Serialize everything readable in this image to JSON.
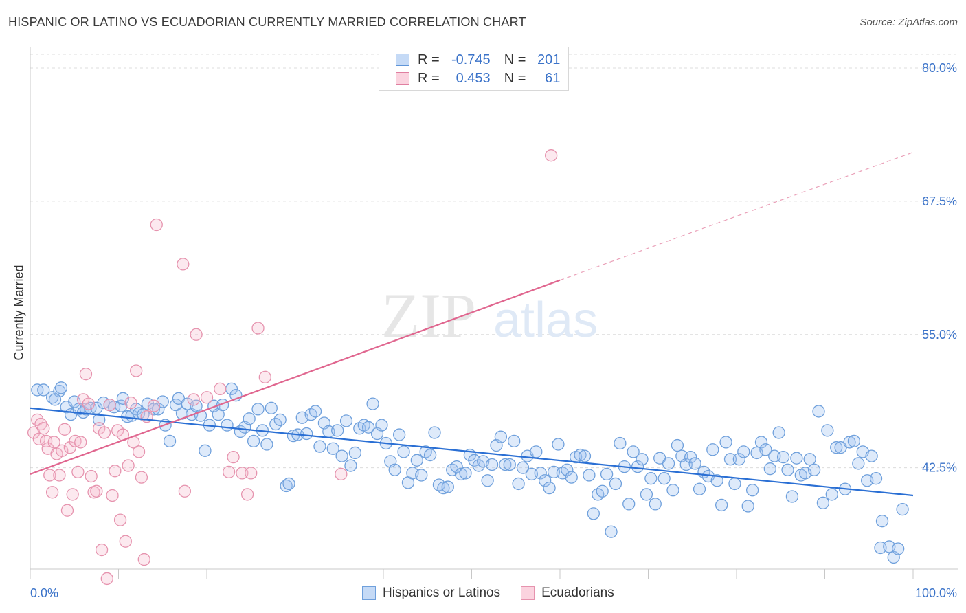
{
  "title": "HISPANIC OR LATINO VS ECUADORIAN CURRENTLY MARRIED CORRELATION CHART",
  "source": "Source: ZipAtlas.com",
  "legend": {
    "rows": [
      {
        "r_label": "R =",
        "r_value": "-0.745",
        "n_label": "N =",
        "n_value": "201",
        "color": "#9fc3f0",
        "border": "#5f95d8"
      },
      {
        "r_label": "R =",
        "r_value": "0.453",
        "n_label": "N =",
        "n_value": "61",
        "color": "#f6bfd0",
        "border": "#e07fa0"
      }
    ]
  },
  "bottom_legend": [
    {
      "label": "Hispanics or Latinos",
      "color": "#c5daf6",
      "border": "#6fa0dc"
    },
    {
      "label": "Ecuadorians",
      "color": "#fbd3df",
      "border": "#e693ae"
    }
  ],
  "chart_data": {
    "type": "scatter",
    "title": "HISPANIC OR LATINO VS ECUADORIAN CURRENTLY MARRIED CORRELATION CHART",
    "xlabel": "",
    "ylabel": "Currently Married",
    "xlim": [
      0,
      100
    ],
    "ylim": [
      33,
      82
    ],
    "y_ticks": [
      42.5,
      55.0,
      67.5,
      80.0
    ],
    "y_tick_labels": [
      "42.5%",
      "55.0%",
      "67.5%",
      "80.0%"
    ],
    "x_tick_labels": [
      "0.0%",
      "100.0%"
    ],
    "grid": "horizontal dashed",
    "watermark": "ZIPatlas",
    "series": [
      {
        "name": "Hispanics or Latinos",
        "color": "#6fa0dc",
        "trend": {
          "x": [
            0,
            100
          ],
          "y": [
            48.1,
            39.9
          ]
        },
        "points": [
          [
            0.8,
            49.8
          ],
          [
            1.5,
            49.8
          ],
          [
            2.5,
            49.1
          ],
          [
            3.3,
            49.7
          ],
          [
            2.8,
            48.9
          ],
          [
            3.5,
            50
          ],
          [
            4.1,
            48.2
          ],
          [
            4.6,
            47.5
          ],
          [
            5,
            48.7
          ],
          [
            5.5,
            48
          ],
          [
            6,
            47.7
          ],
          [
            6.3,
            48
          ],
          [
            6.8,
            48.1
          ],
          [
            7.5,
            48.1
          ],
          [
            7.8,
            47
          ],
          [
            8.3,
            48.6
          ],
          [
            9,
            48.4
          ],
          [
            9.5,
            48.2
          ],
          [
            10.3,
            48.3
          ],
          [
            10.5,
            49
          ],
          [
            11,
            47.3
          ],
          [
            11.5,
            47.4
          ],
          [
            12,
            48
          ],
          [
            12.3,
            47.6
          ],
          [
            12.8,
            47.5
          ],
          [
            13.3,
            48.5
          ],
          [
            14,
            48
          ],
          [
            14.5,
            48
          ],
          [
            15,
            48.7
          ],
          [
            15.3,
            46.5
          ],
          [
            15.8,
            45
          ],
          [
            16.5,
            48.4
          ],
          [
            16.8,
            49
          ],
          [
            17.2,
            47.6
          ],
          [
            17.8,
            48.5
          ],
          [
            18.3,
            47.5
          ],
          [
            18.8,
            48.3
          ],
          [
            19.3,
            47.4
          ],
          [
            19.8,
            44.1
          ],
          [
            20.3,
            46.5
          ],
          [
            20.8,
            48.3
          ],
          [
            21.3,
            47.5
          ],
          [
            21.8,
            48.4
          ],
          [
            22.3,
            46.5
          ],
          [
            22.8,
            49.9
          ],
          [
            23.3,
            49.3
          ],
          [
            23.8,
            45.9
          ],
          [
            24.3,
            46.3
          ],
          [
            24.8,
            47.1
          ],
          [
            25.3,
            45
          ],
          [
            25.8,
            48
          ],
          [
            26.3,
            46
          ],
          [
            26.8,
            44.7
          ],
          [
            27.3,
            48.1
          ],
          [
            27.8,
            46.6
          ],
          [
            28.3,
            47
          ],
          [
            29,
            40.8
          ],
          [
            29.3,
            41
          ],
          [
            29.8,
            45.5
          ],
          [
            30.3,
            45.6
          ],
          [
            30.8,
            47.2
          ],
          [
            31.3,
            45.7
          ],
          [
            31.8,
            47.5
          ],
          [
            32.3,
            47.8
          ],
          [
            32.8,
            44.5
          ],
          [
            33.3,
            46.7
          ],
          [
            33.8,
            45.9
          ],
          [
            34.3,
            44.3
          ],
          [
            34.8,
            46
          ],
          [
            35.3,
            43.6
          ],
          [
            35.8,
            46.9
          ],
          [
            36.3,
            42.7
          ],
          [
            36.8,
            43.9
          ],
          [
            37.3,
            46.2
          ],
          [
            37.8,
            46.5
          ],
          [
            38.3,
            46.3
          ],
          [
            38.8,
            48.5
          ],
          [
            39.3,
            45.7
          ],
          [
            39.8,
            46.5
          ],
          [
            40.3,
            44.8
          ],
          [
            40.8,
            43.1
          ],
          [
            41.3,
            42.3
          ],
          [
            41.8,
            45.6
          ],
          [
            42.3,
            44
          ],
          [
            42.8,
            41.1
          ],
          [
            43.3,
            42
          ],
          [
            43.8,
            43.2
          ],
          [
            44.3,
            41.8
          ],
          [
            44.8,
            44
          ],
          [
            45.3,
            43.7
          ],
          [
            45.8,
            45.8
          ],
          [
            46.3,
            40.9
          ],
          [
            46.8,
            40.6
          ],
          [
            47.3,
            40.7
          ],
          [
            47.8,
            42.3
          ],
          [
            48.3,
            42.6
          ],
          [
            48.8,
            41.9
          ],
          [
            49.3,
            42
          ],
          [
            49.8,
            43.7
          ],
          [
            50.3,
            43.2
          ],
          [
            50.8,
            42.7
          ],
          [
            51.3,
            43.1
          ],
          [
            51.8,
            41.3
          ],
          [
            52.3,
            42.8
          ],
          [
            52.8,
            44.6
          ],
          [
            53.3,
            45.4
          ],
          [
            53.8,
            42.8
          ],
          [
            54.3,
            42.8
          ],
          [
            54.8,
            45
          ],
          [
            55.3,
            41
          ],
          [
            55.8,
            42.5
          ],
          [
            56.3,
            43.6
          ],
          [
            56.8,
            41.9
          ],
          [
            57.3,
            44
          ],
          [
            57.8,
            42
          ],
          [
            58.3,
            41.3
          ],
          [
            58.8,
            40.6
          ],
          [
            59.3,
            42.1
          ],
          [
            59.8,
            44.7
          ],
          [
            60.3,
            42
          ],
          [
            60.8,
            42.3
          ],
          [
            61.3,
            41.6
          ],
          [
            61.8,
            43.5
          ],
          [
            62.3,
            43.7
          ],
          [
            62.8,
            43.6
          ],
          [
            63.3,
            41.8
          ],
          [
            63.8,
            38.2
          ],
          [
            64.3,
            40
          ],
          [
            64.8,
            40.3
          ],
          [
            65.3,
            41.9
          ],
          [
            65.8,
            36.5
          ],
          [
            66.3,
            41
          ],
          [
            66.8,
            44.8
          ],
          [
            67.3,
            42.6
          ],
          [
            67.8,
            39.1
          ],
          [
            68.3,
            44
          ],
          [
            68.8,
            42.6
          ],
          [
            69.3,
            43.3
          ],
          [
            69.8,
            40
          ],
          [
            70.3,
            41.5
          ],
          [
            70.8,
            39.1
          ],
          [
            71.3,
            43.4
          ],
          [
            71.8,
            41.5
          ],
          [
            72.3,
            42.9
          ],
          [
            72.8,
            40.4
          ],
          [
            73.3,
            44.6
          ],
          [
            73.8,
            43.6
          ],
          [
            74.3,
            42.8
          ],
          [
            74.8,
            43.5
          ],
          [
            75.3,
            42.9
          ],
          [
            75.8,
            40.5
          ],
          [
            76.3,
            42.1
          ],
          [
            76.8,
            41.7
          ],
          [
            77.3,
            44.2
          ],
          [
            77.8,
            41.3
          ],
          [
            78.3,
            39
          ],
          [
            78.8,
            44.9
          ],
          [
            79.3,
            43.3
          ],
          [
            79.8,
            41
          ],
          [
            80.3,
            43.3
          ],
          [
            80.8,
            44
          ],
          [
            81.3,
            38.9
          ],
          [
            81.8,
            40.4
          ],
          [
            82.3,
            43.9
          ],
          [
            82.8,
            44.9
          ],
          [
            83.3,
            44.2
          ],
          [
            83.8,
            42.4
          ],
          [
            84.3,
            43.6
          ],
          [
            84.8,
            45.8
          ],
          [
            85.3,
            43.5
          ],
          [
            85.8,
            42.3
          ],
          [
            86.3,
            39.8
          ],
          [
            86.8,
            43.4
          ],
          [
            87.3,
            41.8
          ],
          [
            87.8,
            42
          ],
          [
            88.3,
            43.3
          ],
          [
            88.8,
            42.3
          ],
          [
            89.3,
            47.8
          ],
          [
            89.8,
            39.2
          ],
          [
            90.3,
            46
          ],
          [
            90.8,
            40
          ],
          [
            91.3,
            44.4
          ],
          [
            91.8,
            44.4
          ],
          [
            92.3,
            40.5
          ],
          [
            92.8,
            44.9
          ],
          [
            93.3,
            45
          ],
          [
            93.8,
            42.9
          ],
          [
            94.3,
            44
          ],
          [
            94.8,
            41.3
          ],
          [
            95.3,
            43.6
          ],
          [
            95.8,
            41.5
          ],
          [
            96.3,
            35
          ],
          [
            96.5,
            37.5
          ],
          [
            97.3,
            35.1
          ],
          [
            97.8,
            34.1
          ],
          [
            98.3,
            34.9
          ],
          [
            98.8,
            38.6
          ]
        ]
      },
      {
        "name": "Ecuadorians",
        "color": "#e693ae",
        "trend": {
          "x": [
            0,
            60
          ],
          "y": [
            41.9,
            60.1
          ]
        },
        "trend_dashed": {
          "x": [
            60,
            100
          ],
          "y": [
            60.1,
            72.1
          ]
        },
        "points": [
          [
            0.4,
            45.8
          ],
          [
            0.8,
            47
          ],
          [
            1,
            45.2
          ],
          [
            1.2,
            46.6
          ],
          [
            1.5,
            46.2
          ],
          [
            1.8,
            45
          ],
          [
            2,
            44.3
          ],
          [
            2.2,
            41.8
          ],
          [
            2.5,
            40.2
          ],
          [
            2.7,
            44.9
          ],
          [
            3,
            43.8
          ],
          [
            3.3,
            41.8
          ],
          [
            3.6,
            44.1
          ],
          [
            3.9,
            46.1
          ],
          [
            4.2,
            38.5
          ],
          [
            4.5,
            44.4
          ],
          [
            4.8,
            40
          ],
          [
            5.1,
            45
          ],
          [
            5.4,
            42.1
          ],
          [
            5.7,
            44.9
          ],
          [
            6,
            48.9
          ],
          [
            6.3,
            51.3
          ],
          [
            6.6,
            48.5
          ],
          [
            6.9,
            41.7
          ],
          [
            7.2,
            40.2
          ],
          [
            7.5,
            40.3
          ],
          [
            7.8,
            46.2
          ],
          [
            8.1,
            34.8
          ],
          [
            8.4,
            45.8
          ],
          [
            8.7,
            32.1
          ],
          [
            9,
            48.4
          ],
          [
            9.3,
            39.9
          ],
          [
            9.6,
            42.2
          ],
          [
            9.9,
            46
          ],
          [
            10.2,
            37.6
          ],
          [
            10.5,
            45.6
          ],
          [
            10.8,
            35.6
          ],
          [
            11.1,
            42.7
          ],
          [
            11.4,
            48.6
          ],
          [
            11.7,
            44.9
          ],
          [
            12,
            51.6
          ],
          [
            12.3,
            44
          ],
          [
            12.6,
            41.6
          ],
          [
            12.9,
            33.9
          ],
          [
            13.2,
            47.3
          ],
          [
            14,
            48.3
          ],
          [
            14.3,
            65.3
          ],
          [
            17.3,
            61.6
          ],
          [
            17.5,
            40.3
          ],
          [
            18.5,
            48.9
          ],
          [
            18.8,
            55
          ],
          [
            20,
            49.1
          ],
          [
            21.5,
            49.9
          ],
          [
            22.5,
            42.1
          ],
          [
            23,
            43.5
          ],
          [
            24,
            42
          ],
          [
            24.6,
            40
          ],
          [
            25,
            42
          ],
          [
            25.8,
            55.6
          ],
          [
            26.6,
            51
          ],
          [
            35.2,
            41.9
          ],
          [
            59,
            71.8
          ]
        ]
      }
    ]
  }
}
